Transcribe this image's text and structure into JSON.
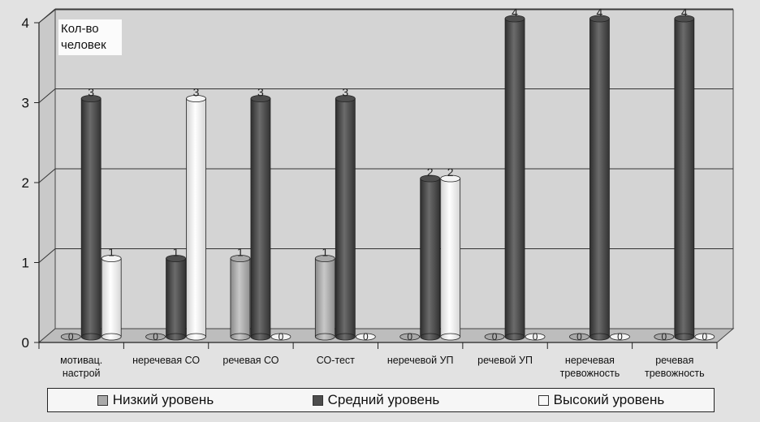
{
  "chart_data": {
    "type": "bar",
    "ylabel": "Кол-во человек",
    "ylim": [
      0,
      4
    ],
    "yticks": [
      "0",
      "1",
      "2",
      "3",
      "4"
    ],
    "categories": [
      [
        "мотивац.",
        "настрой"
      ],
      [
        "неречевая СО"
      ],
      [
        "речевая СО"
      ],
      [
        "СО-тест"
      ],
      [
        "неречевой УП"
      ],
      [
        "речевой УП"
      ],
      [
        "неречевая",
        "тревожность"
      ],
      [
        "речевая",
        "тревожность"
      ]
    ],
    "series": [
      {
        "name": "Низкий уровень",
        "color": "#a9a9a9",
        "values": [
          0,
          0,
          1,
          1,
          0,
          0,
          0,
          0
        ]
      },
      {
        "name": "Средний уровень",
        "color": "#4d4d4d",
        "values": [
          3,
          1,
          3,
          3,
          2,
          4,
          4,
          4
        ]
      },
      {
        "name": "Высокий уровень",
        "color": "#f4f4f4",
        "values": [
          1,
          3,
          0,
          0,
          2,
          0,
          0,
          0
        ]
      }
    ],
    "data_labels": true,
    "grid": true,
    "legend_position": "bottom"
  }
}
